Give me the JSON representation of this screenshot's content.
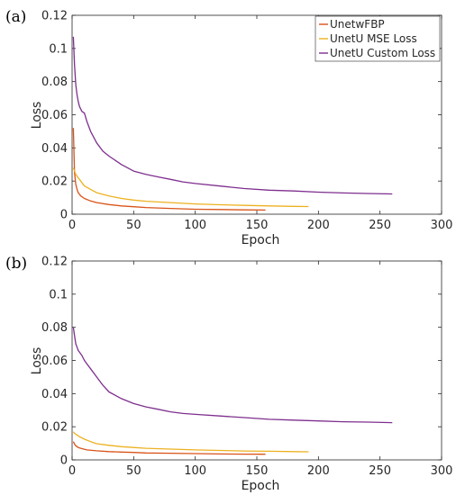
{
  "chart_data": [
    {
      "type": "line",
      "panel_label": "(a)",
      "xlabel": "Epoch",
      "ylabel": "Loss",
      "xlim": [
        0,
        300
      ],
      "ylim": [
        0,
        0.12
      ],
      "xticks": [
        "0",
        "50",
        "100",
        "150",
        "200",
        "250",
        "300"
      ],
      "yticks": [
        "0",
        "0.02",
        "0.04",
        "0.06",
        "0.08",
        "0.1",
        "0.12"
      ],
      "grid": false,
      "legend": "top-right",
      "series": [
        {
          "name": "UnetwFBP",
          "color": "#d95319",
          "x": [
            1,
            2,
            3,
            4,
            5,
            7,
            10,
            15,
            20,
            30,
            40,
            50,
            60,
            80,
            100,
            120,
            140,
            157
          ],
          "y": [
            0.052,
            0.025,
            0.018,
            0.015,
            0.013,
            0.011,
            0.0095,
            0.008,
            0.007,
            0.0058,
            0.005,
            0.0045,
            0.004,
            0.0035,
            0.003,
            0.0028,
            0.0026,
            0.0025
          ]
        },
        {
          "name": "UnetU MSE Loss",
          "color": "#edb120",
          "x": [
            1,
            2,
            3,
            5,
            7,
            10,
            15,
            20,
            30,
            40,
            50,
            60,
            80,
            100,
            120,
            140,
            160,
            180,
            192
          ],
          "y": [
            0.028,
            0.026,
            0.024,
            0.022,
            0.02,
            0.017,
            0.015,
            0.013,
            0.011,
            0.0095,
            0.0085,
            0.0078,
            0.007,
            0.0062,
            0.0057,
            0.0053,
            0.005,
            0.0047,
            0.0046
          ]
        },
        {
          "name": "UnetU Custom Loss",
          "color": "#7e2f8e",
          "x": [
            1,
            2,
            3,
            4,
            5,
            6,
            8,
            10,
            12,
            15,
            20,
            25,
            30,
            40,
            50,
            60,
            70,
            80,
            90,
            100,
            120,
            140,
            160,
            180,
            200,
            220,
            240,
            260
          ],
          "y": [
            0.107,
            0.09,
            0.078,
            0.072,
            0.068,
            0.065,
            0.062,
            0.061,
            0.056,
            0.05,
            0.043,
            0.038,
            0.035,
            0.03,
            0.026,
            0.024,
            0.0225,
            0.021,
            0.0195,
            0.0185,
            0.017,
            0.0155,
            0.0145,
            0.014,
            0.0133,
            0.0128,
            0.0125,
            0.0122
          ]
        }
      ]
    },
    {
      "type": "line",
      "panel_label": "(b)",
      "xlabel": "Epoch",
      "ylabel": "Loss",
      "xlim": [
        0,
        300
      ],
      "ylim": [
        0,
        0.12
      ],
      "xticks": [
        "0",
        "50",
        "100",
        "150",
        "200",
        "250",
        "300"
      ],
      "yticks": [
        "0",
        "0.02",
        "0.04",
        "0.06",
        "0.08",
        "0.1",
        "0.12"
      ],
      "grid": false,
      "series": [
        {
          "color": "#d95319",
          "x": [
            1,
            2,
            3,
            5,
            8,
            12,
            20,
            30,
            40,
            50,
            60,
            80,
            100,
            120,
            140,
            157
          ],
          "y": [
            0.011,
            0.0095,
            0.0085,
            0.0075,
            0.0068,
            0.006,
            0.0055,
            0.005,
            0.0047,
            0.0045,
            0.0042,
            0.004,
            0.0038,
            0.0036,
            0.0035,
            0.0034
          ]
        },
        {
          "color": "#edb120",
          "x": [
            1,
            2,
            4,
            6,
            10,
            15,
            20,
            30,
            40,
            50,
            60,
            80,
            100,
            120,
            140,
            160,
            180,
            192
          ],
          "y": [
            0.017,
            0.016,
            0.015,
            0.014,
            0.0125,
            0.011,
            0.0098,
            0.0088,
            0.008,
            0.0075,
            0.007,
            0.0065,
            0.006,
            0.0057,
            0.0054,
            0.0052,
            0.005,
            0.0049
          ]
        },
        {
          "color": "#7e2f8e",
          "x": [
            1,
            2,
            3,
            4,
            5,
            6,
            8,
            10,
            12,
            15,
            20,
            25,
            30,
            40,
            50,
            60,
            70,
            80,
            90,
            100,
            120,
            140,
            160,
            180,
            200,
            220,
            240,
            260
          ],
          "y": [
            0.08,
            0.075,
            0.07,
            0.068,
            0.066,
            0.065,
            0.063,
            0.06,
            0.058,
            0.055,
            0.05,
            0.045,
            0.041,
            0.037,
            0.034,
            0.032,
            0.0305,
            0.029,
            0.028,
            0.0275,
            0.0265,
            0.0255,
            0.0245,
            0.024,
            0.0235,
            0.023,
            0.0228,
            0.0225
          ]
        }
      ]
    }
  ]
}
